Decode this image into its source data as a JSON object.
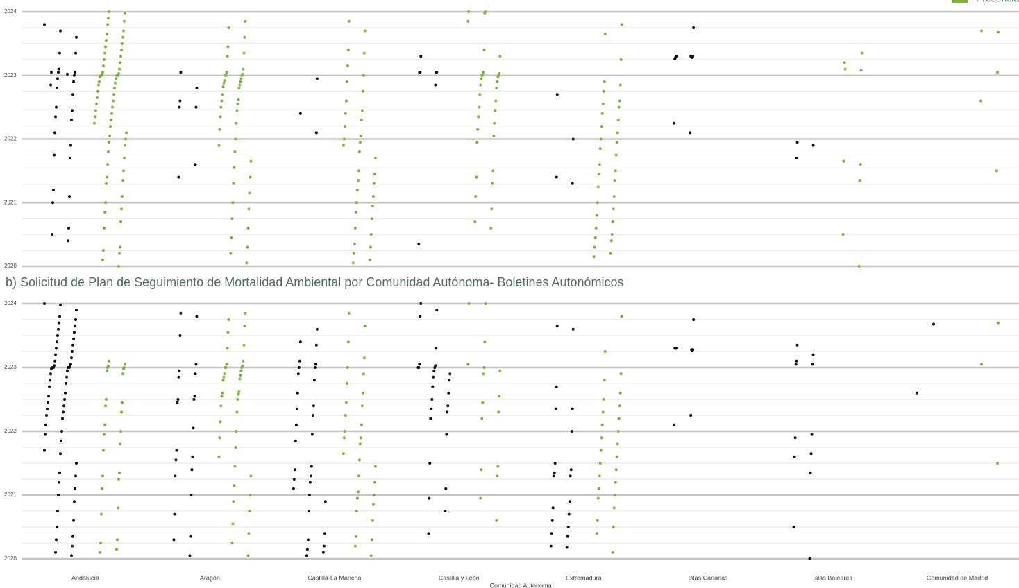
{
  "chart_data": [
    {
      "type": "scatter",
      "ylim": [
        2020,
        2024
      ],
      "yticks": [
        2020,
        2021,
        2022,
        2023,
        2024
      ],
      "yticks_minor": [
        2020.25,
        2020.5,
        2020.75,
        2021.25,
        2021.5,
        2021.75,
        2022.25,
        2022.5,
        2022.75,
        2023.25,
        2023.5,
        2023.75
      ],
      "grid": true,
      "legend": "top-right",
      "series": [
        {
          "color": "#111111",
          "values": [
            [
              2023.8,
              2023.7,
              2023.6,
              2023.35,
              2023.35,
              2023.1,
              2023.05,
              2023.05,
              2023.0,
              2022.95,
              2022.9,
              2022.8,
              2022.7,
              2022.5,
              2022.45,
              2022.35,
              2022.3,
              2022.1,
              2021.9,
              2021.75,
              2021.7,
              2021.2,
              2021.1,
              2021.0,
              2020.6,
              2020.5,
              2020.4,
              2023.05,
              2023.02,
              2022.85
            ],
            [
              2023.05,
              2022.8,
              2022.6,
              2022.5,
              2022.5,
              2021.6,
              2021.4
            ],
            [
              2022.95,
              2022.4,
              2022.1
            ],
            [
              2023.3,
              2023.05,
              2023.05,
              2023.05,
              2023.05,
              2022.85,
              2020.35
            ],
            [
              2022.7,
              2022.0,
              2021.4,
              2021.3
            ],
            [
              2023.75,
              2023.3,
              2023.3,
              2023.3,
              2023.28,
              2023.28,
              2023.3,
              2023.26,
              2023.3,
              2022.25,
              2022.1
            ],
            [
              2021.95,
              2021.9,
              2021.7
            ],
            []
          ]
        },
        {
          "name": "Presencia",
          "color": "#7db33a",
          "values": [
            [
              2024.0,
              2023.98,
              2023.9,
              2023.85,
              2023.8,
              2023.7,
              2023.65,
              2023.6,
              2023.55,
              2023.5,
              2023.45,
              2023.4,
              2023.35,
              2023.3,
              2023.25,
              2023.2,
              2023.15,
              2023.1,
              2023.05,
              2023.03,
              2023.02,
              2023.0,
              2023.0,
              2023.0,
              2023.0,
              2023.0,
              2022.98,
              2022.95,
              2022.9,
              2022.88,
              2022.85,
              2022.8,
              2022.75,
              2022.7,
              2022.65,
              2022.6,
              2022.55,
              2022.5,
              2022.45,
              2022.4,
              2022.35,
              2022.3,
              2022.25,
              2022.2,
              2022.1,
              2022.05,
              2022.0,
              2021.95,
              2021.9,
              2021.8,
              2021.7,
              2021.6,
              2021.5,
              2021.4,
              2021.35,
              2021.3,
              2021.1,
              2021.0,
              2020.9,
              2020.85,
              2020.7,
              2020.6,
              2020.3,
              2020.25,
              2020.2,
              2020.1,
              2020.0
            ],
            [
              2023.85,
              2023.75,
              2023.6,
              2023.45,
              2023.35,
              2023.3,
              2023.1,
              2023.05,
              2023.02,
              2023.0,
              2023.0,
              2023.0,
              2022.95,
              2022.92,
              2022.9,
              2022.88,
              2022.85,
              2022.82,
              2022.8,
              2022.7,
              2022.62,
              2022.6,
              2022.55,
              2022.5,
              2022.45,
              2022.35,
              2022.25,
              2022.15,
              2022.0,
              2021.9,
              2021.8,
              2021.65,
              2021.55,
              2021.4,
              2021.3,
              2021.15,
              2021.0,
              2020.9,
              2020.75,
              2020.6,
              2020.45,
              2020.3,
              2020.2,
              2020.05
            ],
            [
              2023.85,
              2023.7,
              2023.4,
              2023.35,
              2023.15,
              2023.0,
              2022.9,
              2022.75,
              2022.6,
              2022.45,
              2022.4,
              2022.3,
              2022.2,
              2022.05,
              2022.0,
              2021.95,
              2021.9,
              2021.8,
              2021.7,
              2021.5,
              2021.45,
              2021.35,
              2021.3,
              2021.2,
              2021.1,
              2021.0,
              2020.95,
              2020.85,
              2020.75,
              2020.6,
              2020.5,
              2020.35,
              2020.3,
              2020.2,
              2020.1,
              2020.05
            ],
            [
              2024.0,
              2024.0,
              2023.98,
              2023.85,
              2023.4,
              2023.3,
              2023.05,
              2023.03,
              2023.0,
              2023.0,
              2023.0,
              2022.98,
              2022.95,
              2022.9,
              2022.85,
              2022.8,
              2022.7,
              2022.6,
              2022.5,
              2022.45,
              2022.35,
              2022.25,
              2022.15,
              2022.05,
              2021.95,
              2021.5,
              2021.4,
              2021.3,
              2021.1,
              2020.9,
              2020.7,
              2020.6
            ],
            [
              2023.8,
              2023.65,
              2023.25,
              2022.9,
              2022.85,
              2022.75,
              2022.6,
              2022.55,
              2022.5,
              2022.4,
              2022.3,
              2022.2,
              2022.1,
              2022.0,
              2021.95,
              2021.85,
              2021.75,
              2021.6,
              2021.5,
              2021.45,
              2021.35,
              2021.25,
              2021.1,
              2021.0,
              2020.9,
              2020.8,
              2020.7,
              2020.6,
              2020.5,
              2020.45,
              2020.4,
              2020.3,
              2020.2,
              2020.15
            ],
            [],
            [
              2023.35,
              2023.1,
              2023.08,
              2023.2,
              2021.6,
              2021.65,
              2021.35,
              2020.5,
              2020.0
            ],
            [
              2023.68,
              2023.7,
              2023.05,
              2022.6,
              2021.5
            ]
          ]
        }
      ]
    },
    {
      "type": "scatter",
      "title": "b) Solicitud de Plan de Seguimiento de Mortalidad Ambiental por Comunidad Autónoma- Boletines Autonómicos",
      "categories": [
        "Andalucía",
        "Aragón",
        "Castilla-La Mancha",
        "Castilla y León",
        "Extremadura",
        "Islas Canarias",
        "Islas Baleares",
        "Comunidad de Madrid"
      ],
      "xlabel": "Comunidad Autónoma",
      "ylim": [
        2020,
        2024
      ],
      "yticks": [
        2020,
        2021,
        2022,
        2023,
        2024
      ],
      "yticks_minor": [
        2020.25,
        2020.5,
        2020.75,
        2021.25,
        2021.5,
        2021.75,
        2022.25,
        2022.5,
        2022.75,
        2023.25,
        2023.5,
        2023.75
      ],
      "grid": true,
      "series": [
        {
          "color": "#111111",
          "values": [
            [
              2024.0,
              2023.98,
              2023.9,
              2023.8,
              2023.75,
              2023.7,
              2023.65,
              2023.6,
              2023.55,
              2023.5,
              2023.45,
              2023.4,
              2023.35,
              2023.3,
              2023.25,
              2023.2,
              2023.15,
              2023.1,
              2023.05,
              2023.03,
              2023.02,
              2023.0,
              2023.0,
              2023.0,
              2023.0,
              2023.0,
              2023.0,
              2022.98,
              2022.95,
              2022.9,
              2022.85,
              2022.8,
              2022.75,
              2022.7,
              2022.6,
              2022.55,
              2022.5,
              2022.45,
              2022.4,
              2022.35,
              2022.3,
              2022.25,
              2022.2,
              2022.1,
              2022.0,
              2021.95,
              2021.85,
              2021.7,
              2021.65,
              2021.5,
              2021.35,
              2021.3,
              2021.2,
              2021.1,
              2021.0,
              2020.9,
              2020.75,
              2020.6,
              2020.5,
              2020.35,
              2020.3,
              2020.2,
              2020.1,
              2020.05
            ],
            [
              2023.85,
              2023.8,
              2023.5,
              2023.05,
              2022.95,
              2022.9,
              2022.85,
              2022.55,
              2022.5,
              2022.5,
              2022.45,
              2022.05,
              2021.7,
              2021.6,
              2021.55,
              2021.4,
              2021.3,
              2021.0,
              2020.7,
              2020.35,
              2020.3,
              2020.05
            ],
            [
              2023.6,
              2023.4,
              2023.35,
              2023.1,
              2023.05,
              2023.0,
              2023.0,
              2022.9,
              2022.8,
              2022.6,
              2022.4,
              2022.35,
              2022.25,
              2022.1,
              2021.95,
              2021.85,
              2021.45,
              2021.4,
              2021.3,
              2021.25,
              2021.2,
              2021.1,
              2021.0,
              2020.9,
              2020.75,
              2020.4,
              2020.3,
              2020.2,
              2020.15,
              2020.1,
              2020.05
            ],
            [
              2024.0,
              2023.9,
              2023.8,
              2023.3,
              2023.05,
              2023.03,
              2023.0,
              2023.0,
              2023.0,
              2022.95,
              2022.9,
              2022.85,
              2022.8,
              2022.7,
              2022.6,
              2022.5,
              2022.4,
              2022.35,
              2022.3,
              2022.2,
              2021.95,
              2021.5,
              2021.1,
              2020.95,
              2020.75,
              2020.4
            ],
            [
              2023.65,
              2023.6,
              2022.7,
              2022.35,
              2022.35,
              2022.0,
              2021.5,
              2021.4,
              2021.35,
              2021.3,
              2021.3,
              2020.9,
              2020.8,
              2020.7,
              2020.6,
              2020.5,
              2020.4,
              2020.35,
              2020.2,
              2020.18
            ],
            [
              2023.75,
              2023.3,
              2023.28,
              2023.3,
              2023.26,
              2023.3,
              2023.28,
              2023.3,
              2022.25,
              2022.1
            ],
            [
              2023.35,
              2023.2,
              2023.1,
              2023.05,
              2023.05,
              2021.95,
              2021.9,
              2021.65,
              2021.6,
              2021.35,
              2020.5,
              2020.0
            ],
            [
              2023.68,
              2022.6
            ]
          ]
        },
        {
          "color": "#7db33a",
          "values": [
            [
              2023.1,
              2023.05,
              2023.02,
              2023.0,
              2023.0,
              2022.98,
              2022.95,
              2022.9,
              2022.5,
              2022.45,
              2022.4,
              2022.3,
              2022.1,
              2022.0,
              2021.95,
              2021.8,
              2021.7,
              2021.35,
              2021.3,
              2021.25,
              2021.1,
              2020.8,
              2020.7,
              2020.3,
              2020.25,
              2020.15,
              2020.1
            ],
            [
              2023.85,
              2023.75,
              2023.65,
              2023.55,
              2023.35,
              2023.3,
              2023.1,
              2023.05,
              2023.02,
              2023.0,
              2023.0,
              2023.0,
              2022.95,
              2022.9,
              2022.88,
              2022.85,
              2022.82,
              2022.8,
              2022.62,
              2022.6,
              2022.58,
              2022.55,
              2022.5,
              2022.4,
              2022.3,
              2022.15,
              2022.0,
              2021.9,
              2021.75,
              2021.6,
              2021.45,
              2021.3,
              2021.15,
              2021.0,
              2020.9,
              2020.75,
              2020.55,
              2020.4,
              2020.25,
              2020.05
            ],
            [
              2023.85,
              2023.65,
              2023.4,
              2023.15,
              2023.0,
              2022.9,
              2022.75,
              2022.6,
              2022.45,
              2022.4,
              2022.25,
              2022.1,
              2022.0,
              2021.9,
              2021.9,
              2021.8,
              2021.65,
              2021.55,
              2021.45,
              2021.3,
              2021.2,
              2021.05,
              2021.0,
              2020.95,
              2020.85,
              2020.75,
              2020.6,
              2020.35,
              2020.3,
              2020.2,
              2020.05
            ],
            [
              2024.0,
              2024.0,
              2023.4,
              2023.05,
              2023.0,
              2022.95,
              2022.9,
              2022.55,
              2022.45,
              2022.3,
              2022.2,
              2021.45,
              2021.4,
              2021.3,
              2020.95,
              2020.6
            ],
            [
              2023.8,
              2023.25,
              2022.9,
              2022.8,
              2022.6,
              2022.5,
              2022.4,
              2022.3,
              2022.2,
              2022.1,
              2022.0,
              2021.9,
              2021.8,
              2021.7,
              2021.6,
              2021.5,
              2021.4,
              2021.3,
              2021.2,
              2021.1,
              2021.0,
              2020.95,
              2020.8,
              2020.6,
              2020.5,
              2020.4,
              2020.1
            ],
            [],
            [],
            [
              2023.7,
              2023.05,
              2021.5
            ]
          ]
        }
      ]
    }
  ]
}
